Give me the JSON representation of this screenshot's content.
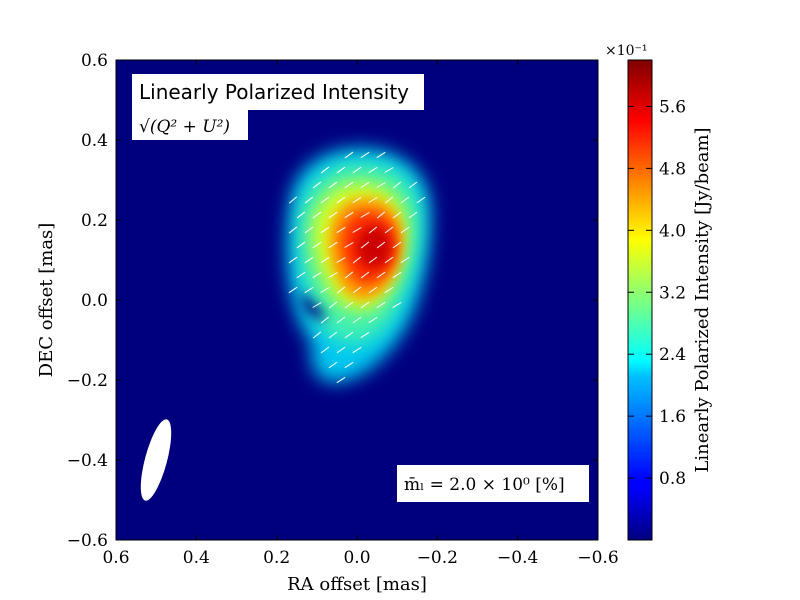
{
  "chart_data": {
    "type": "heatmap",
    "title": "Linearly Polarized Intensity",
    "subtitle": "√(Q² + U²)",
    "xlabel": "RA offset [mas]",
    "ylabel": "DEC offset [mas]",
    "xlim": [
      0.6,
      -0.6
    ],
    "ylim": [
      -0.6,
      0.6
    ],
    "x_ticks": [
      "0.6",
      "0.4",
      "0.2",
      "0.0",
      "−0.2",
      "−0.4",
      "−0.6"
    ],
    "y_ticks": [
      "−0.6",
      "−0.4",
      "−0.2",
      "0.0",
      "0.2",
      "0.4",
      "0.6"
    ],
    "colorbar": {
      "label": "Linearly Polarized Intensity [Jy/beam]",
      "multiplier": "×10⁻¹",
      "ticks": [
        "0.8",
        "1.6",
        "2.4",
        "3.2",
        "4.0",
        "4.8",
        "5.6"
      ],
      "range": [
        0.0,
        6.2
      ],
      "colormap": "jet"
    },
    "peak": {
      "ra": -0.05,
      "dec": 0.13,
      "value": 6.1
    },
    "emission_extent": {
      "ra": [
        0.17,
        -0.2
      ],
      "dec": [
        -0.25,
        0.38
      ]
    },
    "beam": {
      "ra": 0.5,
      "dec": -0.4,
      "major_axis_mas": 0.2,
      "minor_axis_mas": 0.05,
      "position_angle_deg": 15
    },
    "evpa_vectors": "ticks oriented ~30–40° over the polarized emission",
    "mean_fractional_polarization": "m̄ₗ = 2.0 × 10⁰ [%]",
    "grid": false,
    "background_color": "#00007f"
  }
}
